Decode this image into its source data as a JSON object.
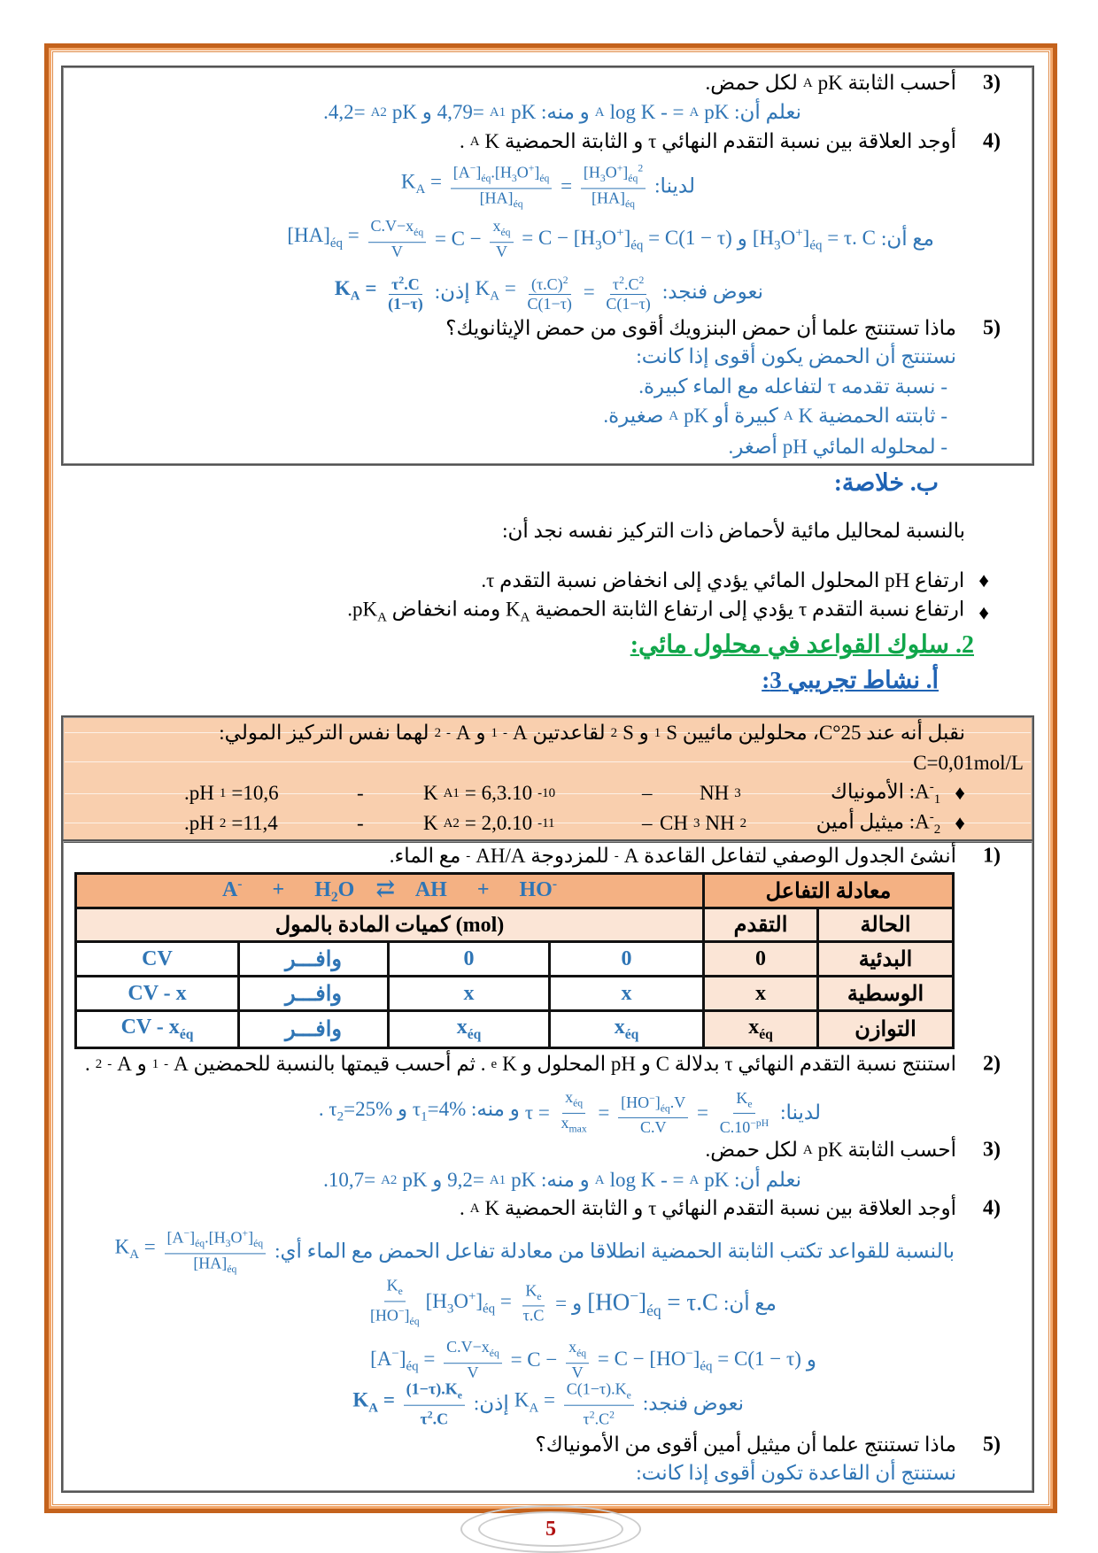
{
  "colors": {
    "frame": "#c4621c",
    "answer": "#2f75b5",
    "heading_blue": "#1f63b4",
    "heading_green": "#10a64a",
    "box_fill": "#f9cfae",
    "table_header": "#f4b183",
    "table_subheader": "#fbe5d6"
  },
  "part1": {
    "q3": {
      "num": "3)",
      "text": "أحسب الثابتة pK_{A} لكل حمض.",
      "answer": "نعلم أن: pK_{A} = - log K_{A} و منه: pK_{A1} =4,79 و pK_{A2} =4,2."
    },
    "q4": {
      "num": "4)",
      "text": "أوجد العلاقة بين نسبة التقدم النهائي τ و الثابتة الحمضية K_{A}.",
      "l1_label": "لدينا:",
      "l1": [
        "K_{A} = ",
        {
          "n": "[A^{−}]_{éq}.[H_{3}O^{+}]_{éq}",
          "d": "[HA]_{éq}"
        },
        " = ",
        {
          "n": "[H_{3}O^{+}]_{éq}^{2}",
          "d": "[HA]_{éq}"
        }
      ],
      "l2_label": "مع أن:",
      "l2a": [
        "[H_{3}O^{+}]_{éq} = τ. C"
      ],
      "and": "و",
      "l2b": [
        "[HA]_{éq} = ",
        {
          "n": "C.V−x_{éq}",
          "d": "V"
        },
        " = C − ",
        {
          "n": "x_{éq}",
          "d": "V"
        },
        " = C − [H_{3}O^{+}]_{éq} = C(1 − τ)"
      ],
      "l3_label": "نعوض فنجد:",
      "l3a": [
        "K_{A} = ",
        {
          "n": "(τ.C)^{2}",
          "d": "C(1−τ)"
        },
        " = ",
        {
          "n": "τ^{2}.C^{2}",
          "d": "C(1−τ)"
        }
      ],
      "l3_then": "إذن:",
      "l3b": [
        "K_{A} = ",
        {
          "n": "τ^{2}.C",
          "d": "(1−τ)"
        }
      ]
    },
    "q5": {
      "num": "5)",
      "text": "ماذا تستنتج علما أن حمض البنزويك أقوى من حمض الإيثانويك؟",
      "answer": "نستنتج أن الحمض يكون أقوى إذا كانت:",
      "items": [
        "-  نسبة تقدمه τ لتفاعله مع الماء كبيرة.",
        "-  ثابتته الحمضية K_{A} كبيرة أو pK_{A} صغيرة.",
        "-  لمحلوله المائي pH أصغر."
      ]
    }
  },
  "summary": {
    "heading": "ب. خلاصة:",
    "intro": "بالنسبة لمحاليل مائية لأحماض ذات التركيز نفسه نجد أن:",
    "bullets": [
      "ارتفاع pH المحلول المائي يؤدي إلى انخفاض نسبة التقدم τ.",
      "ارتفاع نسبة التقدم τ يؤدي إلى ارتفاع الثابتة الحمضية K_{A} ومنه انخفاض pK_{A}."
    ],
    "bullet_icon": "♦"
  },
  "section2": {
    "heading": "2. سلوك القواعد في محلول مائي:",
    "activity": "أ.  نشاط تجريبي 3:"
  },
  "given": {
    "line1": "نقبل أنه عند 25°C، محلولين مائيين S_{1} و S_{2} لقاعدتين A^{-}_{1} و A^{-}_{2} لهما نفس التركيز المولي:",
    "conc": "C=0,01mol/L",
    "bases": [
      {
        "label": "A^{-}_{1}: الأمونياك",
        "formula": "NH_{3}",
        "ka": "K_{A1}= 6,3.10^{-10}",
        "ph": ".pH_{1}=10,6"
      },
      {
        "label": "A^{-}_{2}: ميثيل أمين",
        "formula": "CH_{3}NH_{2}",
        "ka": "K_{A2}= 2,0.10^{-11}",
        "ph": ".pH_{2}=11,4"
      }
    ],
    "dash": "–",
    "dash2": "-"
  },
  "part2": {
    "q1": {
      "num": "1)",
      "text": "أنشئ الجدول الوصفي لتفاعل القاعدة A^{-} للمزدوجة AH/A^{-} مع الماء."
    },
    "table": {
      "eq_label": "معادلة التفاعل",
      "equation": [
        "A^{-}",
        "+",
        "H_{2}O",
        "⇄",
        "AH",
        "+",
        "HO^{-}"
      ],
      "state_label": "الحالة",
      "progress_label": "التقدم",
      "amounts_label": "كميات المادة بالمول (mol)",
      "rows": [
        {
          "state": "البدئية",
          "x": "0",
          "cells": [
            "0",
            "0",
            "وافـــر",
            "CV"
          ]
        },
        {
          "state": "الوسطية",
          "x": "x",
          "cells": [
            "x",
            "x",
            "وافـــر",
            "CV - x"
          ]
        },
        {
          "state": "التوازن",
          "x": "x_{éq}",
          "cells": [
            "x_{éq}",
            "x_{éq}",
            "وافـــر",
            "CV - x_{éq}"
          ]
        }
      ]
    },
    "q2": {
      "num": "2)",
      "text": "استنتج نسبة التقدم النهائي τ بدلالة C و pH المحلول و K_{e}. ثم أحسب قيمتها بالنسبة للحمضين A^{-}_{1} و A^{-}_{2}.",
      "label": "لدينا:",
      "formula": [
        "τ = ",
        {
          "n": "x_{éq}",
          "d": "x_{max}"
        },
        " = ",
        {
          "n": "[HO^{−}]_{éq}.V",
          "d": "C.V"
        },
        " = ",
        {
          "n": "K_{e}",
          "d": "C.10^{−pH}"
        }
      ],
      "result": "و منه: τ_{1}=4% و τ_{2}=25% ."
    },
    "q3": {
      "num": "3)",
      "text": "أحسب الثابتة pK_{A} لكل حمض.",
      "answer": "نعلم أن: pK_{A} = - log K_{A} و منه: pK_{A1} =9,2 و pK_{A2} =10,7."
    },
    "q4": {
      "num": "4)",
      "text": "أوجد العلاقة بين نسبة التقدم النهائي τ و الثابتة الحمضية K_{A}.",
      "l1_label": "بالنسبة للقواعد تكتب الثابتة الحمضية انطلاقا من معادلة تفاعل الحمض مع الماء أي:",
      "l1": [
        "K_{A} = ",
        {
          "n": "[A^{−}]_{éq}.[H_{3}O^{+}]_{éq}",
          "d": "[HA]_{éq}"
        }
      ],
      "l2_label": "مع أن:",
      "l2a": [
        "[HO^{−}]_{éq} = τ.C"
      ],
      "and": "و",
      "l2b": [
        {
          "n": "K_{e}",
          "d": "[HO^{−}]_{éq}"
        },
        "[H_{3}O^{+}]_{éq} = ",
        {
          "n": "K_{e}",
          "d": "τ.C"
        },
        " ="
      ],
      "l3b": [
        "[A^{−}]_{éq} = ",
        {
          "n": "C.V−x_{éq}",
          "d": "V"
        },
        " = C − ",
        {
          "n": "x_{éq}",
          "d": "V"
        },
        " = C − [HO^{−}]_{éq} = C(1 − τ)"
      ],
      "l4_label": "نعوض فنجد:",
      "l4a": [
        "K_{A} = ",
        {
          "n": "C(1−τ).K_{e}",
          "d": "τ^{2}.C^{2}"
        }
      ],
      "l4_then": "إذن:",
      "l4b": [
        "K_{A} = ",
        {
          "n": "(1−τ).K_{e}",
          "d": "τ^{2}.C"
        }
      ]
    },
    "q5": {
      "num": "5)",
      "text": "ماذا تستنتج علما أن ميثيل أمين أقوى من الأمونياك؟",
      "answer": "نستنتج أن القاعدة تكون أقوى إذا كانت:"
    }
  },
  "page_number": "5"
}
